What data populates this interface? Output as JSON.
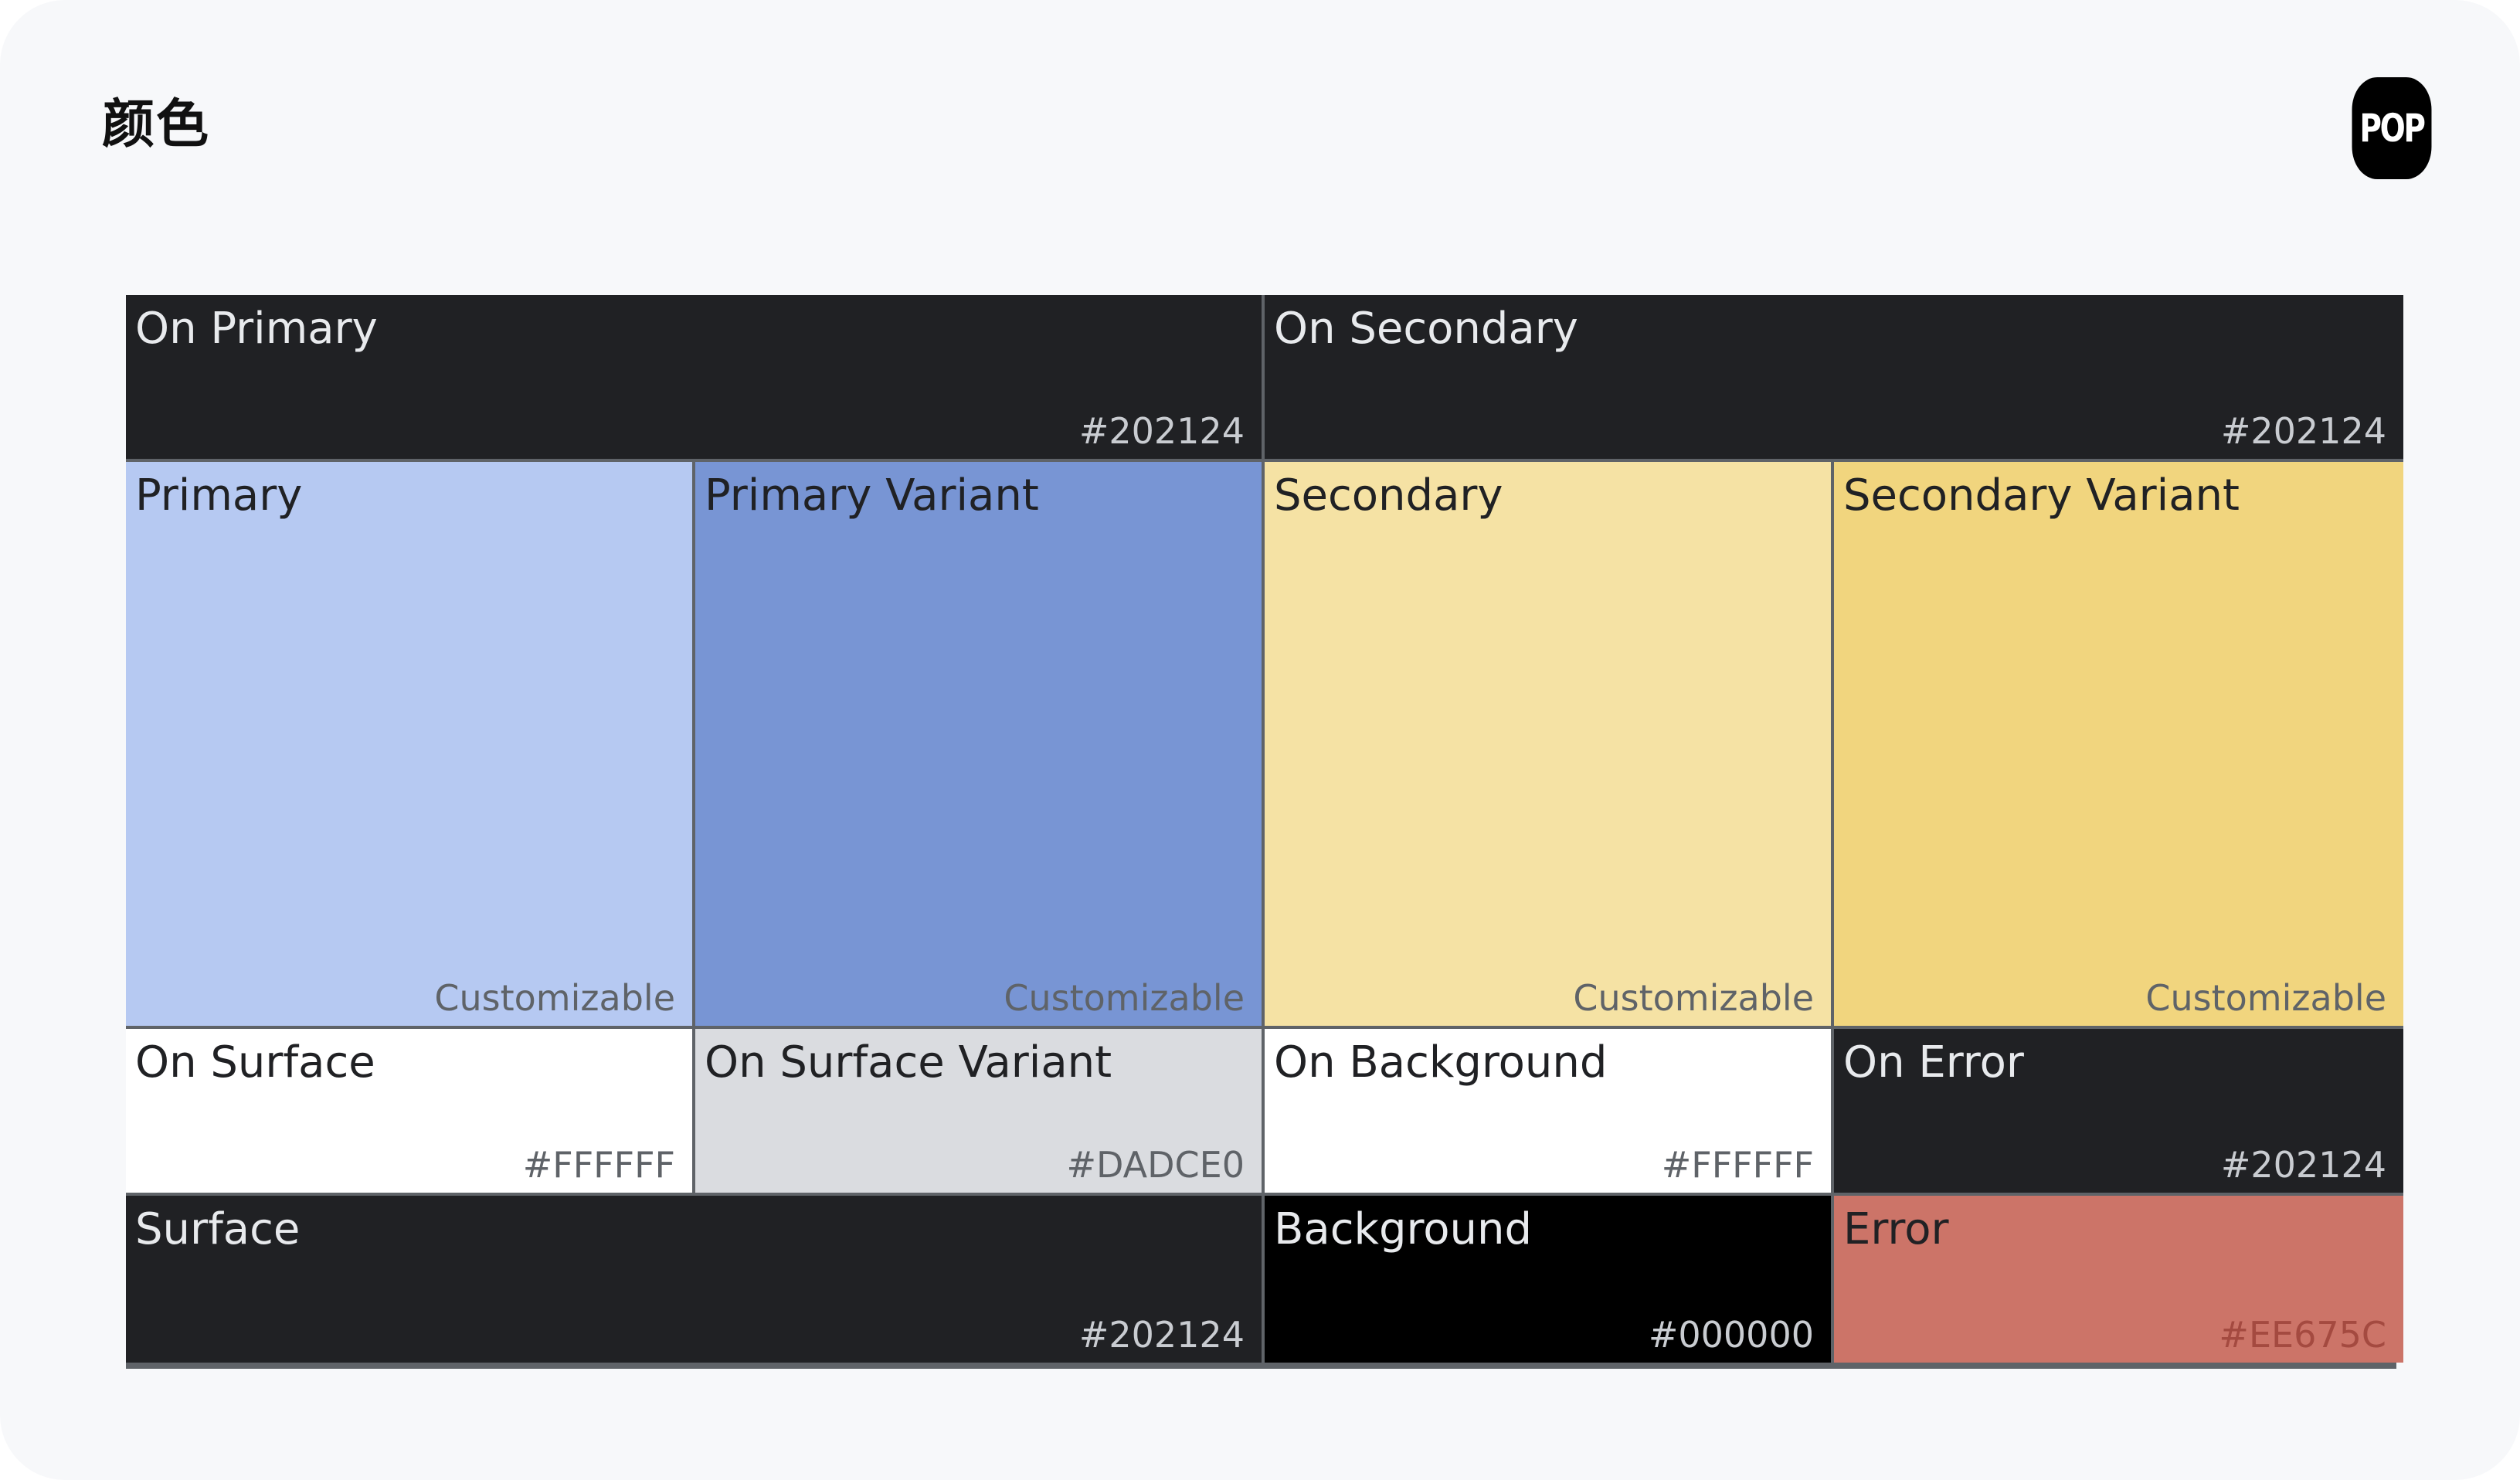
{
  "header": {
    "title": "颜色",
    "logo_text": "POP"
  },
  "palette": {
    "on_primary": {
      "name": "On Primary",
      "value": "#202124"
    },
    "on_secondary": {
      "name": "On Secondary",
      "value": "#202124"
    },
    "primary": {
      "name": "Primary",
      "value": "Customizable"
    },
    "primary_variant": {
      "name": "Primary Variant",
      "value": "Customizable"
    },
    "secondary": {
      "name": "Secondary",
      "value": "Customizable"
    },
    "secondary_variant": {
      "name": "Secondary Variant",
      "value": "Customizable"
    },
    "on_surface": {
      "name": "On Surface",
      "value": "#FFFFFF"
    },
    "on_surface_variant": {
      "name": "On Surface Variant",
      "value": "#DADCE0"
    },
    "on_background": {
      "name": "On Background",
      "value": "#FFFFFF"
    },
    "on_error": {
      "name": "On Error",
      "value": "#202124"
    },
    "surface": {
      "name": "Surface",
      "value": "#202124"
    },
    "background": {
      "name": "Background",
      "value": "#000000"
    },
    "error": {
      "name": "Error",
      "value": "#EE675C"
    }
  },
  "colors": {
    "page_background": "#f7f8fa",
    "dark_tile": "#202124",
    "black_tile": "#000000",
    "white_tile": "#ffffff",
    "grey_tile": "#dadce0",
    "primary_tile": "#b6c9f2",
    "primary_variant_tile": "#7895d4",
    "secondary_tile": "#f5e2a4",
    "secondary_variant_tile": "#f1d57e",
    "error_tile": "#cc7468"
  }
}
